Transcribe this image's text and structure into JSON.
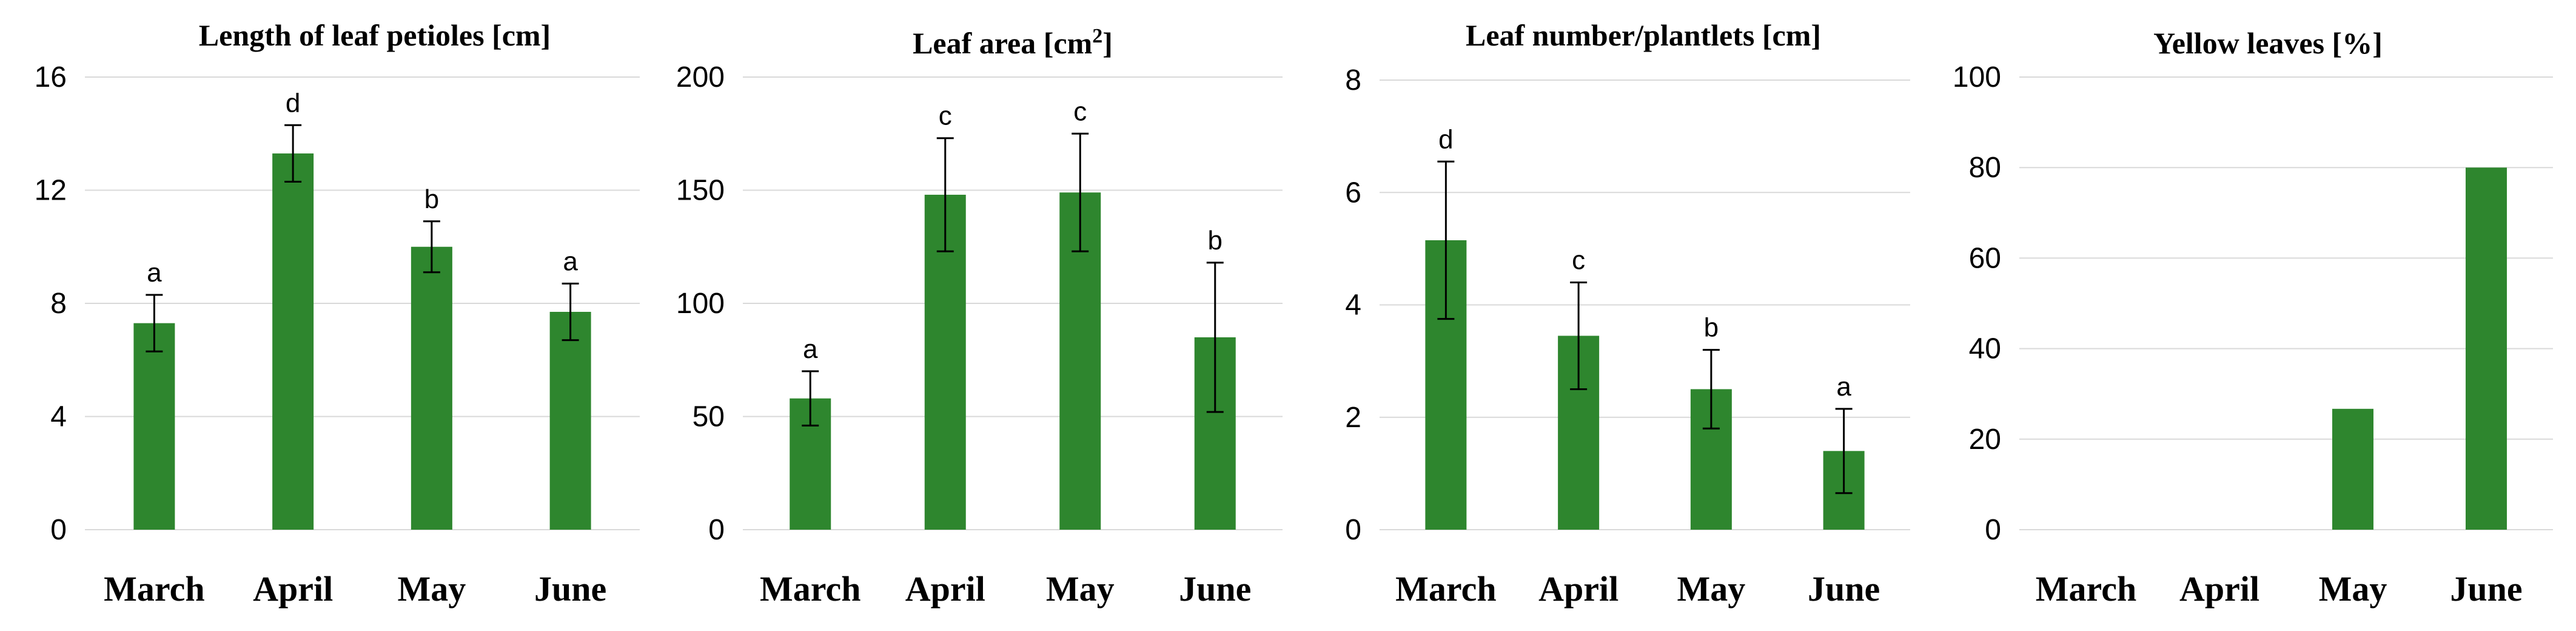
{
  "chart_data": [
    {
      "type": "bar",
      "title": "Length of leaf petioles [cm]",
      "categories": [
        "March",
        "April",
        "May",
        "June"
      ],
      "values": [
        7.3,
        13.3,
        10.0,
        7.7
      ],
      "errors": [
        1.0,
        1.0,
        0.9,
        1.0
      ],
      "significance": [
        "a",
        "d",
        "b",
        "a"
      ],
      "ylim": [
        0,
        16
      ],
      "yticks": [
        "0",
        "4",
        "8",
        "12",
        "16"
      ],
      "ytick_values": [
        0,
        4,
        8,
        12,
        16
      ],
      "grid": true,
      "bar_color": "#2e862e"
    },
    {
      "type": "bar",
      "title": "Leaf area [cm",
      "title_superscript": "2",
      "title_suffix": "]",
      "categories": [
        "March",
        "April",
        "May",
        "June"
      ],
      "values": [
        58,
        148,
        149,
        85
      ],
      "errors": [
        12,
        25,
        26,
        33
      ],
      "significance": [
        "a",
        "c",
        "c",
        "b"
      ],
      "ylim": [
        0,
        200
      ],
      "yticks": [
        "0",
        "50",
        "100",
        "150",
        "200"
      ],
      "ytick_values": [
        0,
        50,
        100,
        150,
        200
      ],
      "grid": true,
      "bar_color": "#2e862e"
    },
    {
      "type": "bar",
      "title": "Leaf number/plantlets [cm]",
      "categories": [
        "March",
        "April",
        "May",
        "June"
      ],
      "values": [
        5.15,
        3.45,
        2.5,
        1.4
      ],
      "errors": [
        1.4,
        0.95,
        0.7,
        0.75
      ],
      "significance": [
        "d",
        "c",
        "b",
        "a"
      ],
      "ylim": [
        0,
        8
      ],
      "yticks": [
        "0",
        "2",
        "4",
        "6",
        "8"
      ],
      "ytick_values": [
        0,
        2,
        4,
        6,
        8
      ],
      "grid": true,
      "bar_color": "#2e862e"
    },
    {
      "type": "bar",
      "title": "Yellow leaves [%]",
      "categories": [
        "March",
        "April",
        "May",
        "June"
      ],
      "values": [
        0,
        0,
        26.7,
        80
      ],
      "ylim": [
        0,
        100
      ],
      "yticks": [
        "0",
        "20",
        "40",
        "60",
        "80",
        "100"
      ],
      "ytick_values": [
        0,
        20,
        40,
        60,
        80,
        100
      ],
      "grid": true,
      "bar_color": "#2e862e"
    }
  ]
}
